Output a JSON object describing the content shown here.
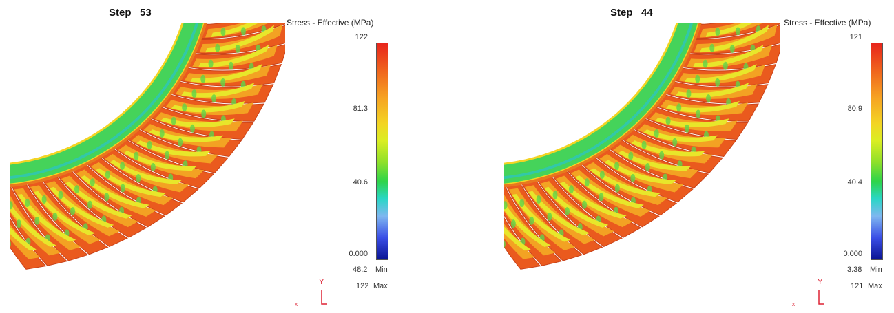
{
  "panels": [
    {
      "step_label": "Step   53",
      "legend_title": "Stress - Effective (MPa)",
      "ticks": [
        "122",
        "81.3",
        "40.6",
        "0.000"
      ],
      "min_value": "48.2",
      "min_label": "Min",
      "max_value": "122",
      "max_label": "Max",
      "axis_y_label": "Y",
      "axis_x_label": "x"
    },
    {
      "step_label": "Step   44",
      "legend_title": "Stress - Effective (MPa)",
      "ticks": [
        "121",
        "80.9",
        "40.4",
        "0.000"
      ],
      "min_value": "3.38",
      "min_label": "Min",
      "max_value": "121",
      "max_label": "Max",
      "axis_y_label": "Y",
      "axis_x_label": "x"
    }
  ],
  "colors": {
    "ring": "#45d35a",
    "ring_edge": "#f3d424",
    "tooth_outer": "#ea5a1e",
    "tooth_mid": "#f3a223",
    "tooth_core": "#e8e62a",
    "tooth_spot": "#5fd44a"
  }
}
